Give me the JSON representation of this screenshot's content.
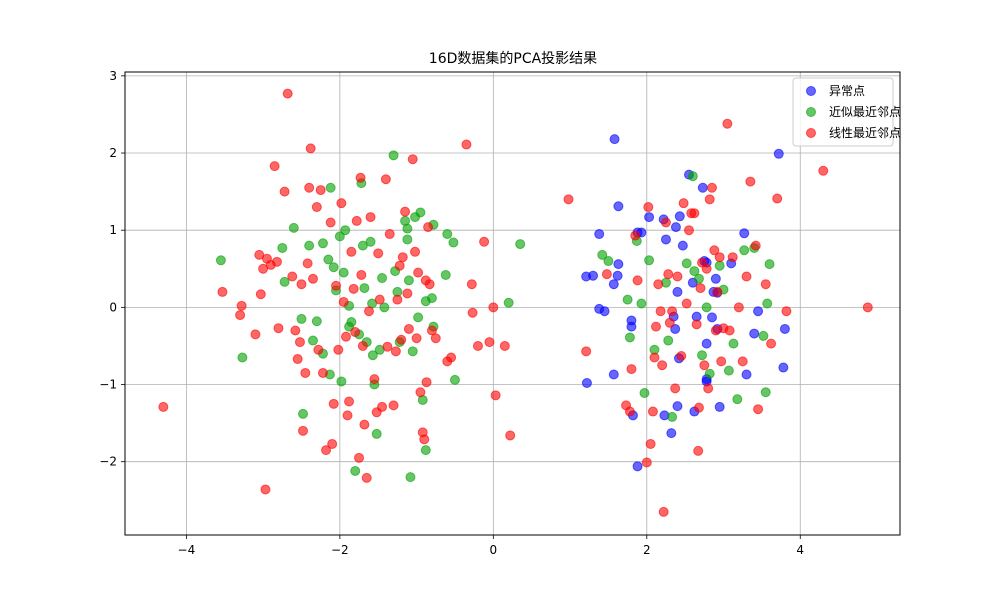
{
  "chart_data": {
    "type": "scatter",
    "title": "16D数据集的PCA投影结果",
    "xlabel": "",
    "ylabel": "",
    "xlim": [
      -4.8,
      5.3
    ],
    "ylim": [
      -2.95,
      3.05
    ],
    "xticks": [
      -4,
      -2,
      0,
      2,
      4
    ],
    "yticks": [
      -2,
      -1,
      0,
      1,
      2,
      3
    ],
    "grid": true,
    "legend_position": "top-right",
    "series": [
      {
        "name": "异常点",
        "color": "#0000ff",
        "points": [
          [
            1.58,
            2.18
          ],
          [
            1.63,
            1.31
          ],
          [
            1.3,
            0.41
          ],
          [
            1.38,
            0.95
          ],
          [
            1.21,
            0.4
          ],
          [
            1.38,
            -0.02
          ],
          [
            1.45,
            -0.05
          ],
          [
            1.57,
            0.3
          ],
          [
            1.63,
            0.56
          ],
          [
            1.62,
            0.41
          ],
          [
            1.8,
            -0.17
          ],
          [
            1.8,
            -0.25
          ],
          [
            1.57,
            -0.87
          ],
          [
            1.22,
            -0.98
          ],
          [
            1.82,
            -1.4
          ],
          [
            1.88,
            -2.06
          ],
          [
            1.88,
            0.97
          ],
          [
            1.93,
            0.97
          ],
          [
            2.03,
            1.17
          ],
          [
            2.22,
            1.14
          ],
          [
            2.25,
            0.88
          ],
          [
            2.38,
            1.04
          ],
          [
            2.43,
            1.18
          ],
          [
            2.47,
            0.8
          ],
          [
            2.4,
            0.2
          ],
          [
            2.35,
            -0.12
          ],
          [
            2.37,
            -0.28
          ],
          [
            2.42,
            -0.66
          ],
          [
            2.55,
            1.72
          ],
          [
            2.6,
            0.32
          ],
          [
            2.65,
            -0.12
          ],
          [
            2.62,
            -1.35
          ],
          [
            2.4,
            -1.28
          ],
          [
            2.32,
            -1.63
          ],
          [
            2.23,
            -1.4
          ],
          [
            2.73,
            1.55
          ],
          [
            2.75,
            0.6
          ],
          [
            2.78,
            0.58
          ],
          [
            2.78,
            -0.47
          ],
          [
            2.78,
            -0.96
          ],
          [
            2.78,
            -0.93
          ],
          [
            2.85,
            -0.13
          ],
          [
            2.87,
            0.2
          ],
          [
            2.9,
            0.37
          ],
          [
            2.92,
            0.19
          ],
          [
            2.92,
            -0.28
          ],
          [
            2.95,
            -1.29
          ],
          [
            3.1,
            0.57
          ],
          [
            3.27,
            0.96
          ],
          [
            3.3,
            -0.87
          ],
          [
            3.4,
            -0.34
          ],
          [
            3.45,
            -0.05
          ],
          [
            3.72,
            1.99
          ],
          [
            3.78,
            -0.78
          ],
          [
            3.8,
            -0.28
          ]
        ]
      },
      {
        "name": "近似最近邻点",
        "color": "#00a000",
        "points": [
          [
            -3.55,
            0.61
          ],
          [
            -3.27,
            -0.65
          ],
          [
            -2.75,
            0.77
          ],
          [
            -2.72,
            0.33
          ],
          [
            -2.6,
            1.03
          ],
          [
            -2.5,
            -0.15
          ],
          [
            -2.48,
            -1.38
          ],
          [
            -2.4,
            0.8
          ],
          [
            -2.35,
            -0.43
          ],
          [
            -2.3,
            -0.18
          ],
          [
            -2.22,
            -0.6
          ],
          [
            -2.22,
            0.83
          ],
          [
            -2.15,
            0.62
          ],
          [
            -2.12,
            1.55
          ],
          [
            -2.13,
            -0.87
          ],
          [
            -2.08,
            0.52
          ],
          [
            -2.05,
            0.22
          ],
          [
            -2.0,
            0.92
          ],
          [
            -1.95,
            0.45
          ],
          [
            -1.98,
            -0.96
          ],
          [
            -1.93,
            1.0
          ],
          [
            -1.88,
            0.02
          ],
          [
            -1.88,
            -0.25
          ],
          [
            -1.85,
            -0.19
          ],
          [
            -1.8,
            -2.12
          ],
          [
            -1.75,
            -0.35
          ],
          [
            -1.72,
            1.61
          ],
          [
            -1.7,
            0.8
          ],
          [
            -1.68,
            0.25
          ],
          [
            -1.65,
            -0.45
          ],
          [
            -1.6,
            0.85
          ],
          [
            -1.58,
            0.05
          ],
          [
            -1.57,
            -0.62
          ],
          [
            -1.55,
            -1.0
          ],
          [
            -1.52,
            -1.64
          ],
          [
            -1.48,
            -0.55
          ],
          [
            -1.45,
            0.38
          ],
          [
            -1.42,
            0.0
          ],
          [
            -1.3,
            1.97
          ],
          [
            -1.28,
            0.47
          ],
          [
            -1.25,
            0.2
          ],
          [
            -1.22,
            -0.45
          ],
          [
            -1.15,
            1.12
          ],
          [
            -1.12,
            0.88
          ],
          [
            -1.12,
            1.02
          ],
          [
            -1.1,
            0.35
          ],
          [
            -1.08,
            -2.2
          ],
          [
            -1.05,
            -0.57
          ],
          [
            -1.02,
            1.17
          ],
          [
            -0.98,
            -0.13
          ],
          [
            -0.95,
            1.23
          ],
          [
            -0.92,
            -1.2
          ],
          [
            -0.88,
            -1.85
          ],
          [
            -0.88,
            0.08
          ],
          [
            -0.8,
            0.12
          ],
          [
            -0.78,
            1.07
          ],
          [
            -0.78,
            -0.25
          ],
          [
            -0.62,
            0.42
          ],
          [
            -0.6,
            0.95
          ],
          [
            -0.52,
            0.84
          ],
          [
            -0.5,
            -0.94
          ],
          [
            0.2,
            0.06
          ],
          [
            0.35,
            0.82
          ],
          [
            1.42,
            0.68
          ],
          [
            1.5,
            0.6
          ],
          [
            1.75,
            0.1
          ],
          [
            1.78,
            -0.39
          ],
          [
            1.87,
            0.86
          ],
          [
            1.93,
            0.05
          ],
          [
            1.97,
            -1.11
          ],
          [
            2.03,
            0.61
          ],
          [
            2.1,
            -0.55
          ],
          [
            2.25,
            0.32
          ],
          [
            2.28,
            -0.43
          ],
          [
            2.33,
            -1.42
          ],
          [
            2.52,
            0.57
          ],
          [
            2.6,
            1.7
          ],
          [
            2.62,
            0.47
          ],
          [
            2.68,
            0.37
          ],
          [
            2.72,
            -0.62
          ],
          [
            2.78,
            0.0
          ],
          [
            2.82,
            -0.86
          ],
          [
            2.95,
            0.54
          ],
          [
            3.0,
            0.23
          ],
          [
            3.07,
            -0.82
          ],
          [
            3.13,
            -0.47
          ],
          [
            3.18,
            -1.19
          ],
          [
            3.27,
            0.74
          ],
          [
            3.4,
            0.77
          ],
          [
            3.52,
            -0.37
          ],
          [
            3.55,
            -1.1
          ],
          [
            3.57,
            0.05
          ],
          [
            3.6,
            0.56
          ]
        ]
      },
      {
        "name": "线性最近邻点",
        "color": "#ff0000",
        "points": [
          [
            -4.3,
            -1.29
          ],
          [
            -3.53,
            0.2
          ],
          [
            -3.3,
            -0.1
          ],
          [
            -3.28,
            0.02
          ],
          [
            -3.1,
            -0.35
          ],
          [
            -3.05,
            0.68
          ],
          [
            -3.03,
            0.17
          ],
          [
            -3.0,
            0.5
          ],
          [
            -2.97,
            -2.36
          ],
          [
            -2.95,
            0.63
          ],
          [
            -2.9,
            0.55
          ],
          [
            -2.85,
            1.83
          ],
          [
            -2.82,
            0.59
          ],
          [
            -2.8,
            -0.27
          ],
          [
            -2.72,
            1.5
          ],
          [
            -2.68,
            2.77
          ],
          [
            -2.62,
            0.4
          ],
          [
            -2.58,
            -0.3
          ],
          [
            -2.55,
            -0.67
          ],
          [
            -2.52,
            -0.45
          ],
          [
            -2.5,
            0.3
          ],
          [
            -2.48,
            -1.6
          ],
          [
            -2.45,
            -0.85
          ],
          [
            -2.42,
            0.57
          ],
          [
            -2.4,
            1.55
          ],
          [
            -2.38,
            2.06
          ],
          [
            -2.35,
            0.37
          ],
          [
            -2.3,
            1.3
          ],
          [
            -2.28,
            -0.55
          ],
          [
            -2.25,
            1.52
          ],
          [
            -2.22,
            -0.85
          ],
          [
            -2.18,
            -1.85
          ],
          [
            -2.12,
            1.1
          ],
          [
            -2.1,
            -1.77
          ],
          [
            -2.08,
            -1.25
          ],
          [
            -2.05,
            0.28
          ],
          [
            -2.02,
            -0.55
          ],
          [
            -1.98,
            1.35
          ],
          [
            -1.95,
            0.07
          ],
          [
            -1.92,
            -0.38
          ],
          [
            -1.9,
            -1.4
          ],
          [
            -1.88,
            -1.22
          ],
          [
            -1.85,
            0.72
          ],
          [
            -1.82,
            0.24
          ],
          [
            -1.8,
            -0.32
          ],
          [
            -1.78,
            1.12
          ],
          [
            -1.75,
            -1.95
          ],
          [
            -1.73,
            1.68
          ],
          [
            -1.72,
            0.42
          ],
          [
            -1.7,
            -0.5
          ],
          [
            -1.68,
            -1.52
          ],
          [
            -1.65,
            -2.21
          ],
          [
            -1.62,
            -0.05
          ],
          [
            -1.6,
            1.17
          ],
          [
            -1.55,
            -0.93
          ],
          [
            -1.52,
            -1.36
          ],
          [
            -1.5,
            0.7
          ],
          [
            -1.48,
            0.1
          ],
          [
            -1.45,
            -1.29
          ],
          [
            -1.4,
            1.66
          ],
          [
            -1.38,
            -0.51
          ],
          [
            -1.35,
            0.95
          ],
          [
            -1.3,
            -1.27
          ],
          [
            -1.27,
            -0.57
          ],
          [
            -1.25,
            0.1
          ],
          [
            -1.22,
            0.54
          ],
          [
            -1.2,
            -0.42
          ],
          [
            -1.18,
            0.65
          ],
          [
            -1.15,
            1.24
          ],
          [
            -1.12,
            0.18
          ],
          [
            -1.1,
            -0.28
          ],
          [
            -1.05,
            1.92
          ],
          [
            -1.02,
            0.72
          ],
          [
            -1.0,
            -0.4
          ],
          [
            -0.98,
            0.45
          ],
          [
            -0.95,
            -1.1
          ],
          [
            -0.92,
            -1.62
          ],
          [
            -0.9,
            -1.71
          ],
          [
            -0.88,
            0.35
          ],
          [
            -0.87,
            -0.97
          ],
          [
            -0.85,
            1.04
          ],
          [
            -0.83,
            0.3
          ],
          [
            -0.8,
            -0.3
          ],
          [
            -0.75,
            -0.4
          ],
          [
            -0.6,
            -0.7
          ],
          [
            -0.55,
            -0.65
          ],
          [
            -0.35,
            2.11
          ],
          [
            -0.28,
            0.3
          ],
          [
            -0.27,
            -0.07
          ],
          [
            -0.2,
            -0.5
          ],
          [
            -0.12,
            0.85
          ],
          [
            -0.05,
            -0.45
          ],
          [
            0.0,
            0.0
          ],
          [
            0.03,
            -1.14
          ],
          [
            0.15,
            -0.5
          ],
          [
            0.22,
            -1.66
          ],
          [
            0.98,
            1.4
          ],
          [
            1.21,
            -0.57
          ],
          [
            1.48,
            0.43
          ],
          [
            1.73,
            -1.27
          ],
          [
            1.78,
            -1.35
          ],
          [
            1.8,
            -0.8
          ],
          [
            1.85,
            0.93
          ],
          [
            1.88,
            0.35
          ],
          [
            2.0,
            -2.01
          ],
          [
            2.02,
            1.3
          ],
          [
            2.05,
            -1.77
          ],
          [
            2.08,
            -1.35
          ],
          [
            2.1,
            -0.65
          ],
          [
            2.12,
            -0.25
          ],
          [
            2.15,
            0.3
          ],
          [
            2.18,
            -0.05
          ],
          [
            2.2,
            -0.75
          ],
          [
            2.22,
            -2.65
          ],
          [
            2.25,
            1.1
          ],
          [
            2.28,
            0.43
          ],
          [
            2.3,
            -0.2
          ],
          [
            2.33,
            -0.05
          ],
          [
            2.37,
            -1.05
          ],
          [
            2.4,
            0.4
          ],
          [
            2.45,
            -0.63
          ],
          [
            2.48,
            1.35
          ],
          [
            2.52,
            0.05
          ],
          [
            2.55,
            1.0
          ],
          [
            2.58,
            1.22
          ],
          [
            2.62,
            1.22
          ],
          [
            2.65,
            -0.22
          ],
          [
            2.67,
            -1.86
          ],
          [
            2.68,
            -1.3
          ],
          [
            2.7,
            0.25
          ],
          [
            2.72,
            0.58
          ],
          [
            2.75,
            -0.75
          ],
          [
            2.78,
            0.5
          ],
          [
            2.8,
            -1.05
          ],
          [
            2.82,
            1.4
          ],
          [
            2.85,
            1.55
          ],
          [
            2.88,
            0.74
          ],
          [
            2.9,
            -0.3
          ],
          [
            2.92,
            0.2
          ],
          [
            2.95,
            0.65
          ],
          [
            2.97,
            -0.7
          ],
          [
            3.0,
            -0.27
          ],
          [
            3.05,
            2.38
          ],
          [
            3.08,
            -0.3
          ],
          [
            3.12,
            0.65
          ],
          [
            3.2,
            0.0
          ],
          [
            3.25,
            -0.7
          ],
          [
            3.3,
            0.4
          ],
          [
            3.35,
            1.63
          ],
          [
            3.42,
            0.8
          ],
          [
            3.45,
            -1.32
          ],
          [
            3.55,
            0.3
          ],
          [
            3.62,
            -0.47
          ],
          [
            3.7,
            1.41
          ],
          [
            3.82,
            -0.05
          ],
          [
            4.3,
            1.77
          ],
          [
            4.88,
            0.0
          ]
        ]
      }
    ]
  }
}
